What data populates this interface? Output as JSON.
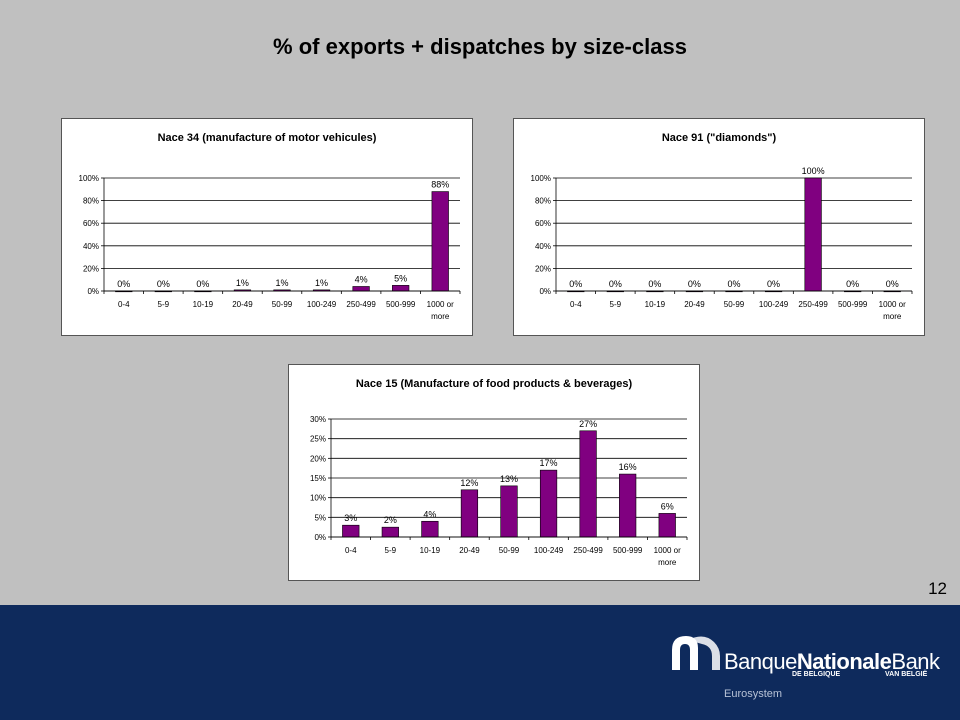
{
  "slide": {
    "title": "% of exports + dispatches by size-class",
    "page_number": "12"
  },
  "footer": {
    "logo_text_regular": "Banque",
    "logo_text_bold": "Nationale",
    "logo_text_end": "Bank",
    "logo_sub_left": "DE BELGIQUE",
    "logo_sub_right": "VAN BELGIË",
    "eurosystem": "Eurosystem",
    "brand_color": "#0e2a5c"
  },
  "chart_data": [
    {
      "type": "bar",
      "title": "Nace 34 (manufacture of motor vehicules)",
      "categories": [
        "0-4",
        "5-9",
        "10-19",
        "20-49",
        "50-99",
        "100-249",
        "250-499",
        "500-999",
        "1000 or more"
      ],
      "values": [
        0,
        0,
        0,
        1,
        1,
        1,
        4,
        5,
        88
      ],
      "data_labels": [
        "0%",
        "0%",
        "0%",
        "1%",
        "1%",
        "1%",
        "4%",
        "5%",
        "88%"
      ],
      "yticks": [
        "0%",
        "20%",
        "40%",
        "60%",
        "80%",
        "100%"
      ],
      "ylim": [
        0,
        100
      ],
      "grid": true,
      "bar_color": "#800080"
    },
    {
      "type": "bar",
      "title": "Nace 91 (\"diamonds\")",
      "categories": [
        "0-4",
        "5-9",
        "10-19",
        "20-49",
        "50-99",
        "100-249",
        "250-499",
        "500-999",
        "1000 or more"
      ],
      "values": [
        0,
        0,
        0,
        0,
        0,
        0,
        100,
        0,
        0
      ],
      "data_labels": [
        "0%",
        "0%",
        "0%",
        "0%",
        "0%",
        "0%",
        "100%",
        "0%",
        "0%"
      ],
      "yticks": [
        "0%",
        "20%",
        "40%",
        "60%",
        "80%",
        "100%"
      ],
      "ylim": [
        0,
        100
      ],
      "grid": true,
      "bar_color": "#800080"
    },
    {
      "type": "bar",
      "title": "Nace 15 (Manufacture of food products & beverages)",
      "categories": [
        "0-4",
        "5-9",
        "10-19",
        "20-49",
        "50-99",
        "100-249",
        "250-499",
        "500-999",
        "1000 or more"
      ],
      "values": [
        3,
        2.5,
        4,
        12,
        13,
        17,
        27,
        16,
        6
      ],
      "data_labels": [
        "3%",
        "2%",
        "4%",
        "12%",
        "13%",
        "17%",
        "27%",
        "16%",
        "6%"
      ],
      "yticks": [
        "0%",
        "5%",
        "10%",
        "15%",
        "20%",
        "25%",
        "30%"
      ],
      "ylim": [
        0,
        30
      ],
      "grid": true,
      "bar_color": "#800080"
    }
  ]
}
